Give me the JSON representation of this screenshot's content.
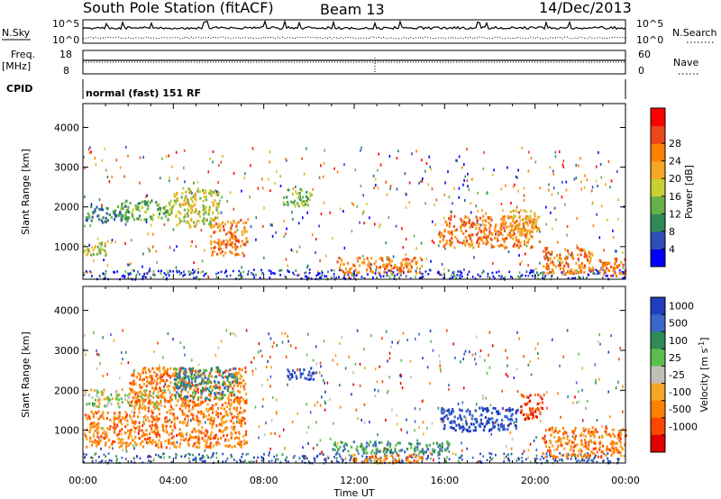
{
  "header": {
    "station": "South Pole Station (fitACF)",
    "beam": "Beam 13",
    "date": "14/Dec/2013"
  },
  "strip": {
    "nsky_label": "N.Sky",
    "nsky_ticks": [
      "10^5",
      "10^0"
    ],
    "nsearch_label": "N.Search",
    "nsearch_ticks": [
      "10^5",
      "10^0"
    ],
    "freq_label": "Freq.",
    "freq_unit": "[MHz]",
    "freq_ticks": [
      "18",
      "8"
    ],
    "nave_label": "Nave",
    "nave_ticks": [
      "60",
      "0"
    ],
    "cpid_label": "CPID",
    "cpid_value": "normal (fast) 151 RF"
  },
  "chart_data": [
    {
      "type": "heatmap",
      "panel": "power",
      "ylabel": "Slant Range [km]",
      "y_ticks": [
        "1000",
        "2000",
        "3000",
        "4000"
      ],
      "ylim": [
        180,
        4600
      ],
      "xlim": [
        0,
        24
      ],
      "colorbar": {
        "label": "Power [dB]",
        "ticks": [
          "4",
          "8",
          "12",
          "16",
          "20",
          "24",
          "28"
        ],
        "colors": [
          "#0000ff",
          "#2f4fb8",
          "#2e8b57",
          "#66b04a",
          "#c8d032",
          "#f5a623",
          "#ff7f00",
          "#e8481a",
          "#ff0000"
        ]
      },
      "regions": [
        {
          "t0": 0.0,
          "t1": 2.0,
          "r0": 1650,
          "r1": 2050,
          "level": 2
        },
        {
          "t0": 1.6,
          "t1": 4.0,
          "r0": 1700,
          "r1": 2200,
          "level": 3
        },
        {
          "t0": 0.0,
          "t1": 1.0,
          "r0": 800,
          "r1": 1150,
          "level": 4
        },
        {
          "t0": 4.0,
          "t1": 6.0,
          "r0": 1500,
          "r1": 2500,
          "level": 4
        },
        {
          "t0": 5.6,
          "t1": 7.2,
          "r0": 800,
          "r1": 1700,
          "level": 6
        },
        {
          "t0": 8.8,
          "t1": 10.1,
          "r0": 2050,
          "r1": 2500,
          "level": 3
        },
        {
          "t0": 11.2,
          "t1": 15.0,
          "r0": 350,
          "r1": 750,
          "level": 6
        },
        {
          "t0": 15.7,
          "t1": 20.0,
          "r0": 1000,
          "r1": 1800,
          "level": 6
        },
        {
          "t0": 18.8,
          "t1": 20.2,
          "r0": 1400,
          "r1": 1950,
          "level": 5
        },
        {
          "t0": 20.3,
          "t1": 22.6,
          "r0": 350,
          "r1": 1000,
          "level": 6
        },
        {
          "t0": 22.8,
          "t1": 24.0,
          "r0": 300,
          "r1": 750,
          "level": 6
        }
      ]
    },
    {
      "type": "heatmap",
      "panel": "velocity",
      "ylabel": "Slant Range [km]",
      "y_ticks": [
        "1000",
        "2000",
        "3000",
        "4000"
      ],
      "ylim": [
        180,
        4600
      ],
      "xlim": [
        0,
        24
      ],
      "colorbar": {
        "label": "Velocity [m s^-1]",
        "ticks": [
          "1000",
          "500",
          "100",
          "25",
          "-25",
          "-100",
          "-500",
          "-1000"
        ],
        "colors": [
          "#1f3fbf",
          "#3a67c9",
          "#2e8b57",
          "#5abf4a",
          "#c0c0b8",
          "#f5a623",
          "#ff7f00",
          "#ff4500",
          "#e00000"
        ]
      },
      "regions": [
        {
          "t0": 0.0,
          "t1": 3.6,
          "r0": 1600,
          "r1": 2050,
          "level": 4
        },
        {
          "t0": 0.0,
          "t1": 2.0,
          "r0": 600,
          "r1": 1500,
          "level": 6
        },
        {
          "t0": 2.0,
          "t1": 7.2,
          "r0": 600,
          "r1": 2600,
          "level": 6
        },
        {
          "t0": 4.0,
          "t1": 6.8,
          "r0": 1800,
          "r1": 2600,
          "level": 2
        },
        {
          "t0": 9.0,
          "t1": 10.2,
          "r0": 2250,
          "r1": 2600,
          "level": 0
        },
        {
          "t0": 11.0,
          "t1": 16.2,
          "r0": 450,
          "r1": 750,
          "level": 2
        },
        {
          "t0": 11.8,
          "t1": 15.0,
          "r0": 200,
          "r1": 420,
          "level": 6
        },
        {
          "t0": 15.8,
          "t1": 19.2,
          "r0": 1000,
          "r1": 1600,
          "level": 0
        },
        {
          "t0": 19.3,
          "t1": 20.3,
          "r0": 1300,
          "r1": 1950,
          "level": 7
        },
        {
          "t0": 20.3,
          "t1": 24.0,
          "r0": 350,
          "r1": 1100,
          "level": 6
        }
      ]
    }
  ],
  "x_axis": {
    "ticks": [
      "00:00",
      "04:00",
      "08:00",
      "12:00",
      "16:00",
      "20:00",
      "00:00"
    ],
    "label": "Time UT"
  }
}
